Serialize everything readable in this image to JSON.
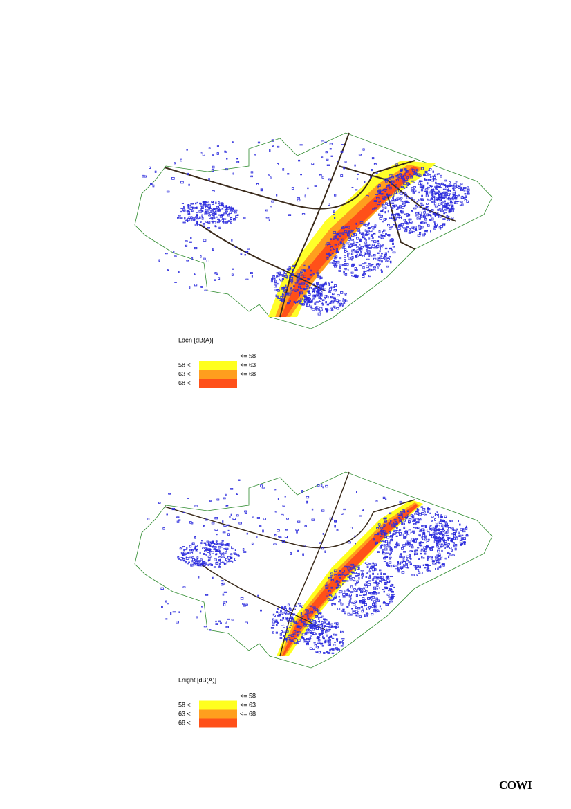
{
  "maps": [
    {
      "legend_title": "Lden [dB(A)]",
      "legend": [
        {
          "high": "<= 58"
        },
        {
          "low": "58 <",
          "high": "<= 63",
          "color": "#ffff1e"
        },
        {
          "low": "63 <",
          "high": "<= 68",
          "color": "#ff9e1e"
        },
        {
          "low": "68 <",
          "color": "#ff5019"
        }
      ]
    },
    {
      "legend_title": "Lnight [dB(A)]",
      "legend": [
        {
          "high": "<= 58"
        },
        {
          "low": "58 <",
          "high": "<= 63",
          "color": "#ffff1e"
        },
        {
          "low": "63 <",
          "high": "<= 68",
          "color": "#ff9e1e"
        },
        {
          "low": "68 <",
          "color": "#ff5019"
        }
      ]
    }
  ],
  "footer": {
    "logo": "COWI"
  }
}
